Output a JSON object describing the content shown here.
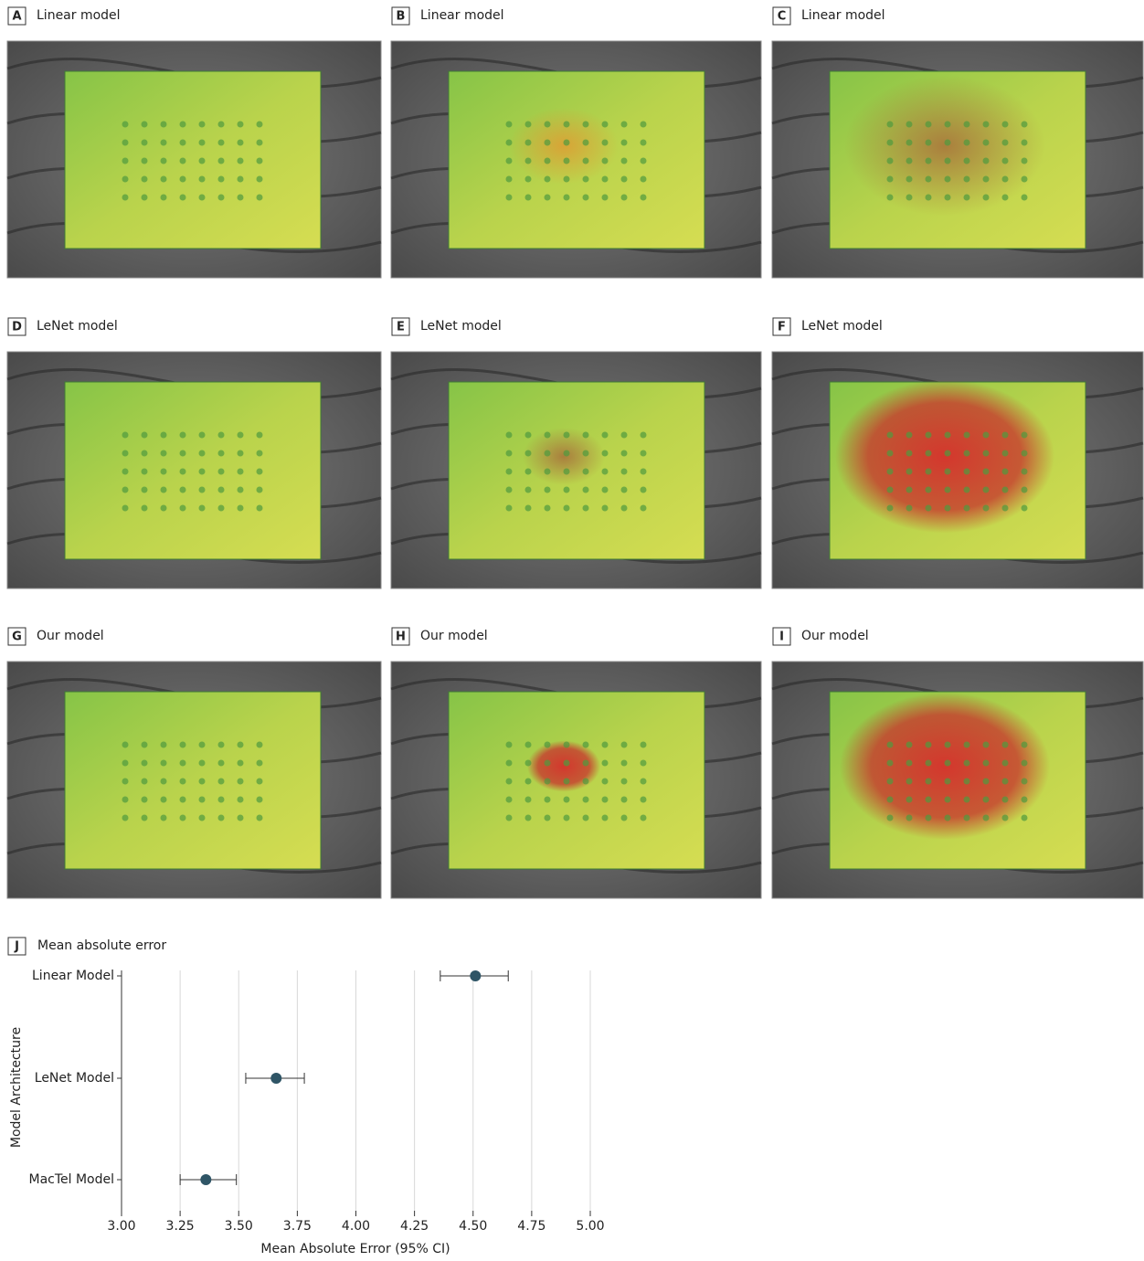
{
  "panels": [
    {
      "letter": "A",
      "title": "Linear model"
    },
    {
      "letter": "B",
      "title": "Linear model"
    },
    {
      "letter": "C",
      "title": "Linear model"
    },
    {
      "letter": "D",
      "title": "LeNet model"
    },
    {
      "letter": "E",
      "title": "LeNet model"
    },
    {
      "letter": "F",
      "title": "LeNet model"
    },
    {
      "letter": "G",
      "title": "Our model"
    },
    {
      "letter": "H",
      "title": "Our model"
    },
    {
      "letter": "I",
      "title": "Our model"
    }
  ],
  "chart_data": {
    "type": "dot",
    "panel_label": "J",
    "title": "Mean absolute error",
    "x_label": "Mean Absolute Error (95% CI)",
    "y_label": "Model Architecture",
    "categories": [
      "Linear Model",
      "LeNet Model",
      "MacTel Model"
    ],
    "values": [
      4.51,
      3.66,
      3.36
    ],
    "ci_low": [
      4.36,
      3.53,
      3.25
    ],
    "ci_high": [
      4.65,
      3.78,
      3.49
    ],
    "color": "#2f5566",
    "xlim": [
      3.0,
      5.0
    ],
    "xticks": [
      {
        "value": 3.0,
        "label": "3.00"
      },
      {
        "value": 3.25,
        "label": "3.25"
      },
      {
        "value": 3.5,
        "label": "3.50"
      },
      {
        "value": 3.75,
        "label": "3.75"
      },
      {
        "value": 4.0,
        "label": "4.00"
      },
      {
        "value": 4.25,
        "label": "4.25"
      },
      {
        "value": 4.5,
        "label": "4.50"
      },
      {
        "value": 4.75,
        "label": "4.75"
      },
      {
        "value": 5.0,
        "label": "5.00"
      }
    ],
    "grid": true
  }
}
